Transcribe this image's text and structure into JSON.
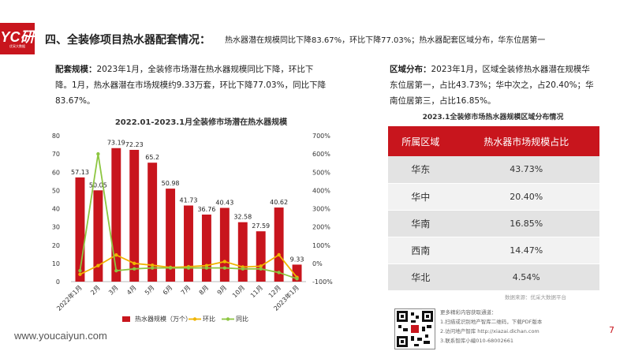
{
  "header": {
    "logo_text": "YC研",
    "logo_sub": "优采大数据",
    "title": "四、全装修项目热水器配套情况：",
    "title_desc": "热水器潜在规模同比下降83.67%，环比下降77.03%；热水器配套区域分布，华东位居第一"
  },
  "left_paragraph": {
    "label": "配套规模：",
    "text": "2023年1月，全装修市场潜在热水器规模同比下降，环比下降。1月，热水器潜在市场规模约9.33万套，环比下降77.03%，同比下降83.67%。"
  },
  "right_paragraph": {
    "label": "区域分布：",
    "text": "2023年1月，区域全装修热水器潜在规模华东位居第一，占比43.73%；华中次之，占20.40%；华南位居第三，占比16.85%。"
  },
  "chart_data": {
    "type": "bar",
    "title": "2022.01-2023.1月全装修市场潜在热水器规模",
    "categories": [
      "2022年1月",
      "2月",
      "3月",
      "4月",
      "5月",
      "6月",
      "7月",
      "8月",
      "9月",
      "10月",
      "11月",
      "12月",
      "2023年1月"
    ],
    "series": [
      {
        "name": "热水器规模（万个）",
        "type": "bar",
        "axis": "left",
        "color": "#c8151d",
        "values": [
          57.13,
          50.05,
          73.19,
          72.23,
          65.2,
          50.98,
          41.73,
          36.76,
          40.43,
          32.58,
          27.59,
          40.62,
          9.33
        ]
      },
      {
        "name": "环比",
        "type": "line",
        "axis": "right",
        "color": "#f0b400",
        "values": [
          -60,
          -12,
          46,
          0,
          -10,
          -22,
          -18,
          -12,
          10,
          -20,
          -15,
          47,
          -77
        ]
      },
      {
        "name": "同比",
        "type": "line",
        "axis": "right",
        "color": "#8dc641",
        "values": [
          -40,
          600,
          -40,
          -30,
          -25,
          -25,
          -25,
          -25,
          -25,
          -30,
          -30,
          -50,
          -84
        ]
      }
    ],
    "ylim_left": [
      0,
      80
    ],
    "ylim_right": [
      -100,
      700
    ],
    "left_ticks": [
      "0",
      "10",
      "20",
      "30",
      "40",
      "50",
      "60",
      "70",
      "80"
    ],
    "right_ticks": [
      "-100%",
      "0%",
      "100%",
      "200%",
      "300%",
      "400%",
      "500%",
      "600%",
      "700%"
    ],
    "legend_position": "bottom"
  },
  "region_table": {
    "title": "2023.1全装修市场热水器规模区域分布情况",
    "headers": [
      "所属区域",
      "热水器市场规模占比"
    ],
    "rows": [
      {
        "region": "华东",
        "share": "43.73%"
      },
      {
        "region": "华中",
        "share": "20.40%"
      },
      {
        "region": "华南",
        "share": "16.85%"
      },
      {
        "region": "西南",
        "share": "14.47%"
      },
      {
        "region": "华北",
        "share": "4.54%"
      }
    ]
  },
  "source": "数据来源：优采大数据平台",
  "footer": {
    "url": "www.youcaiyun.com",
    "contact_lines": [
      "更多精彩内容获取通道：",
      "1.扫描或识别地产智库二维码，下载PDF版本",
      "2.访问地产智库 http://xiazai.dichan.com",
      "3.联系智库小编010-68002661"
    ],
    "page_number": "7"
  }
}
